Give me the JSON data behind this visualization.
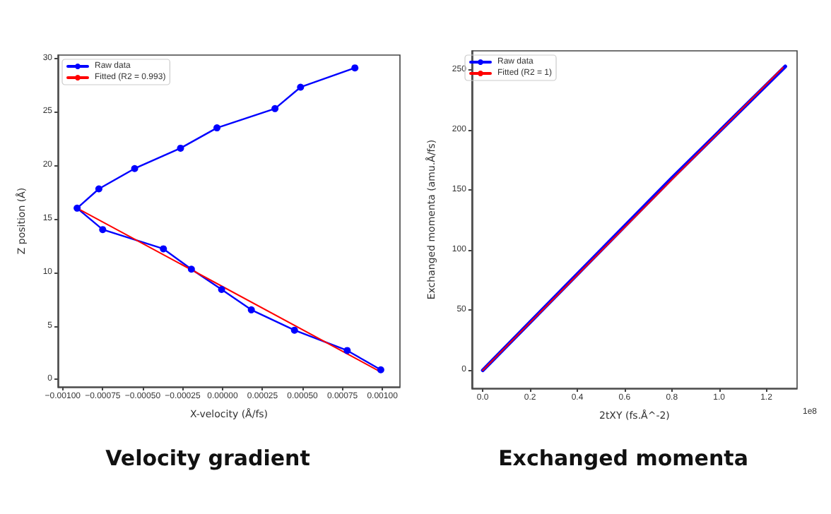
{
  "chart_data": [
    {
      "type": "line",
      "title": "Velocity gradient",
      "xlabel": "X-velocity (Å/fs)",
      "ylabel": "Z position (Å)",
      "xlim": [
        -0.00103,
        0.00111
      ],
      "ylim": [
        -0.7,
        30.3
      ],
      "xticks": [
        {
          "value": -0.001,
          "label": "−0.00100"
        },
        {
          "value": -0.00075,
          "label": "−0.00075"
        },
        {
          "value": -0.0005,
          "label": "−0.00050"
        },
        {
          "value": -0.00025,
          "label": "−0.00025"
        },
        {
          "value": 0,
          "label": "0.00000"
        },
        {
          "value": 0.00025,
          "label": "0.00025"
        },
        {
          "value": 0.0005,
          "label": "0.00050"
        },
        {
          "value": 0.00075,
          "label": "0.00075"
        },
        {
          "value": 0.001,
          "label": "0.00100"
        }
      ],
      "yticks": [
        0,
        5,
        10,
        15,
        20,
        25,
        30
      ],
      "grid": false,
      "legend": "top left",
      "series": [
        {
          "name": "Raw data",
          "color": "#0000ff",
          "marker": "circle",
          "x": [
            0.00099,
            0.00078,
            0.00045,
            0.00018,
            -6e-06,
            -0.000195,
            -0.00037,
            -0.00075,
            -0.00091,
            -0.000774,
            -0.00055,
            -0.000263,
            -3.5e-05,
            0.000328,
            0.000488,
            0.000828
          ],
          "values": [
            0.9,
            2.7,
            4.6,
            6.5,
            8.4,
            10.3,
            12.2,
            14.0,
            16.0,
            17.8,
            19.7,
            21.6,
            23.5,
            25.3,
            27.3,
            29.1
          ]
        },
        {
          "name": "Fitted (R2 = 0.993)",
          "color": "#ff0000",
          "marker": "none",
          "x": [
            -0.00091,
            0.00099
          ],
          "values": [
            16.0,
            0.7
          ]
        }
      ]
    },
    {
      "type": "line",
      "title": "Exchanged momenta",
      "xlabel": "2tXY (fs.Å^-2)",
      "ylabel": "Exchanged momenta (amu.Å/fs)",
      "annotations": [
        "1e8"
      ],
      "xlim": [
        -0.046,
        1.33
      ],
      "ylim": [
        -15,
        266
      ],
      "xticks": [
        {
          "value": 0,
          "label": "0.0"
        },
        {
          "value": 0.2,
          "label": "0.2"
        },
        {
          "value": 0.4,
          "label": "0.4"
        },
        {
          "value": 0.6,
          "label": "0.6"
        },
        {
          "value": 0.8,
          "label": "0.8"
        },
        {
          "value": 1.0,
          "label": "1.0"
        },
        {
          "value": 1.2,
          "label": "1.2"
        }
      ],
      "yticks": [
        0,
        50,
        100,
        150,
        200,
        250
      ],
      "grid": false,
      "legend": "top left",
      "series": [
        {
          "name": "Raw data",
          "color": "#0000ff",
          "marker": "none",
          "x": [
            0,
            0.4,
            0.8,
            1.28
          ],
          "values": [
            0,
            80,
            160,
            253
          ]
        },
        {
          "name": "Fitted (R2 = 1)",
          "color": "#ff0000",
          "marker": "none",
          "x": [
            0,
            1.27
          ],
          "values": [
            0,
            252
          ]
        }
      ]
    }
  ]
}
